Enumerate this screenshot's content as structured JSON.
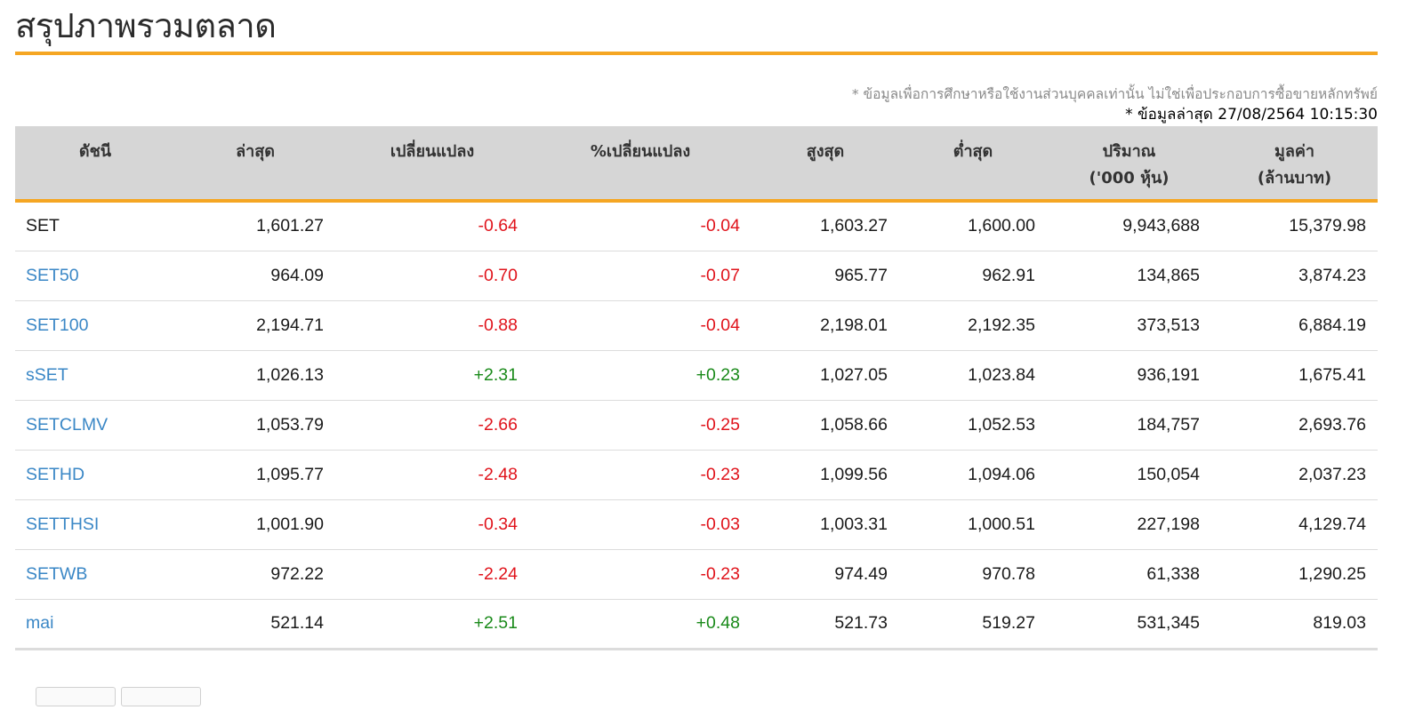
{
  "page": {
    "title": "สรุปภาพรวมตลาด",
    "disclaimer": "* ข้อมูลเพื่อการศึกษาหรือใช้งานส่วนบุคคลเท่านั้น ไม่ใช่เพื่อประกอบการซื้อขายหลักทรัพย์",
    "updated": "* ข้อมูลล่าสุด 27/08/2564 10:15:30"
  },
  "table": {
    "headers": {
      "index": "ดัชนี",
      "last": "ล่าสุด",
      "change": "เปลี่ยนแปลง",
      "pct_change": "%เปลี่ยนแปลง",
      "high": "สูงสุด",
      "low": "ต่ำสุด",
      "volume_line1": "ปริมาณ",
      "volume_line2": "('000 หุ้น)",
      "value_line1": "มูลค่า",
      "value_line2": "(ล้านบาท)"
    },
    "rows": [
      {
        "index": "SET",
        "link": false,
        "last": "1,601.27",
        "change": "-0.64",
        "pct_change": "-0.04",
        "direction": "down",
        "high": "1,603.27",
        "low": "1,600.00",
        "volume": "9,943,688",
        "value": "15,379.98"
      },
      {
        "index": "SET50",
        "link": true,
        "last": "964.09",
        "change": "-0.70",
        "pct_change": "-0.07",
        "direction": "down",
        "high": "965.77",
        "low": "962.91",
        "volume": "134,865",
        "value": "3,874.23"
      },
      {
        "index": "SET100",
        "link": true,
        "last": "2,194.71",
        "change": "-0.88",
        "pct_change": "-0.04",
        "direction": "down",
        "high": "2,198.01",
        "low": "2,192.35",
        "volume": "373,513",
        "value": "6,884.19"
      },
      {
        "index": "sSET",
        "link": true,
        "last": "1,026.13",
        "change": "+2.31",
        "pct_change": "+0.23",
        "direction": "up",
        "high": "1,027.05",
        "low": "1,023.84",
        "volume": "936,191",
        "value": "1,675.41"
      },
      {
        "index": "SETCLMV",
        "link": true,
        "last": "1,053.79",
        "change": "-2.66",
        "pct_change": "-0.25",
        "direction": "down",
        "high": "1,058.66",
        "low": "1,052.53",
        "volume": "184,757",
        "value": "2,693.76"
      },
      {
        "index": "SETHD",
        "link": true,
        "last": "1,095.77",
        "change": "-2.48",
        "pct_change": "-0.23",
        "direction": "down",
        "high": "1,099.56",
        "low": "1,094.06",
        "volume": "150,054",
        "value": "2,037.23"
      },
      {
        "index": "SETTHSI",
        "link": true,
        "last": "1,001.90",
        "change": "-0.34",
        "pct_change": "-0.03",
        "direction": "down",
        "high": "1,003.31",
        "low": "1,000.51",
        "volume": "227,198",
        "value": "4,129.74"
      },
      {
        "index": "SETWB",
        "link": true,
        "last": "972.22",
        "change": "-2.24",
        "pct_change": "-0.23",
        "direction": "down",
        "high": "974.49",
        "low": "970.78",
        "volume": "61,338",
        "value": "1,290.25"
      },
      {
        "index": "mai",
        "link": true,
        "last": "521.14",
        "change": "+2.51",
        "pct_change": "+0.48",
        "direction": "up",
        "high": "521.73",
        "low": "519.27",
        "volume": "531,345",
        "value": "819.03"
      }
    ]
  },
  "colors": {
    "accent": "#f5a623",
    "header_bg": "#d6d6d6",
    "link": "#3a87c6",
    "negative": "#e0131b",
    "positive": "#1a8a1a"
  }
}
